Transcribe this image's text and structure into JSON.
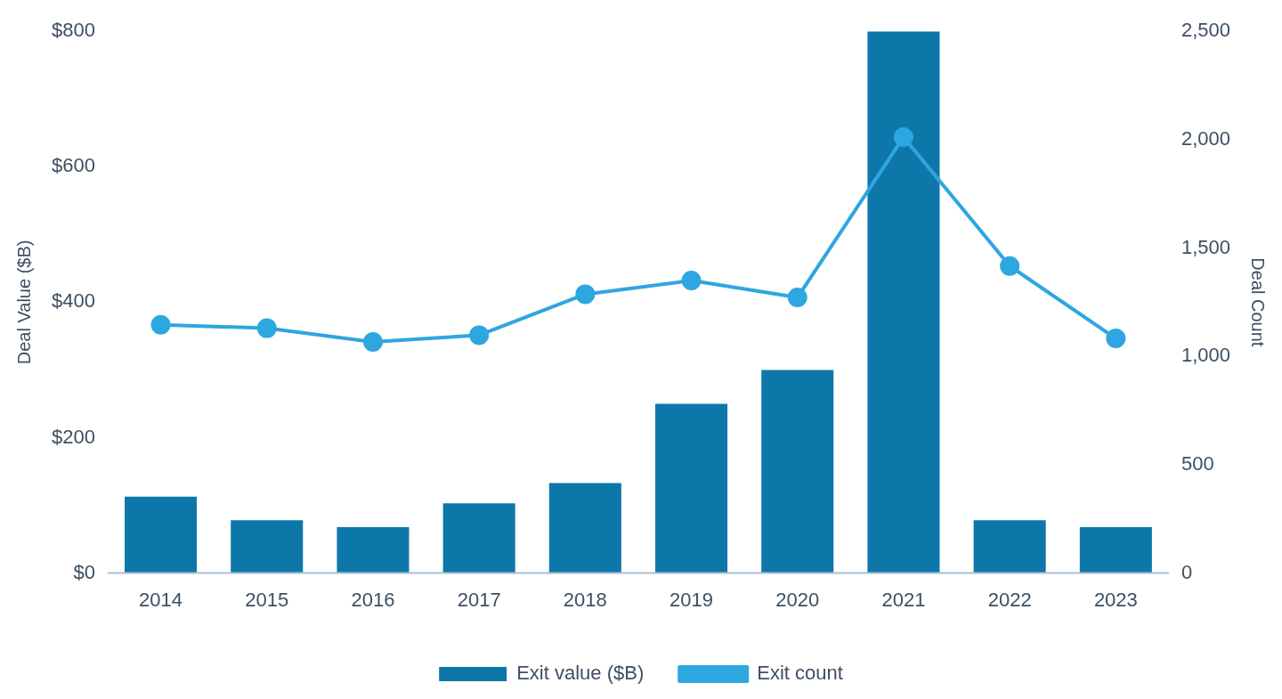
{
  "chart_data": {
    "type": "bar",
    "ylabel": "Deal Value ($B)",
    "y2label": "Deal Count",
    "categories": [
      "2014",
      "2015",
      "2016",
      "2017",
      "2018",
      "2019",
      "2020",
      "2021",
      "2022",
      "2023"
    ],
    "series": [
      {
        "name": "Exit value ($B)",
        "color": "#0e77aa",
        "values": [
          113,
          78,
          68,
          103,
          133,
          250,
          300,
          800,
          78,
          68
        ]
      },
      {
        "name": "Exit count",
        "type": "line",
        "axis": "y2",
        "color": "#2ea6df",
        "marker": "circle",
        "values": [
          1146,
          1130,
          1067,
          1098,
          1287,
          1350,
          1272,
          2012,
          1417,
          1083
        ]
      }
    ],
    "ylim": [
      0,
      800
    ],
    "yticks": [
      {
        "value": 0,
        "label": "$0"
      },
      {
        "value": 200,
        "label": "$200"
      },
      {
        "value": 400,
        "label": "$400"
      },
      {
        "value": 600,
        "label": "$600"
      },
      {
        "value": 800,
        "label": "$800"
      }
    ],
    "y2lim": [
      0,
      2500
    ],
    "y2ticks": [
      0,
      500,
      {
        "value": 1000,
        "label": "1,000"
      },
      {
        "value": 1500,
        "label": "1,500"
      },
      {
        "value": 2000,
        "label": "2,000"
      },
      {
        "value": 2500,
        "label": "2,500"
      }
    ],
    "grid": false,
    "legend": "bottom"
  }
}
